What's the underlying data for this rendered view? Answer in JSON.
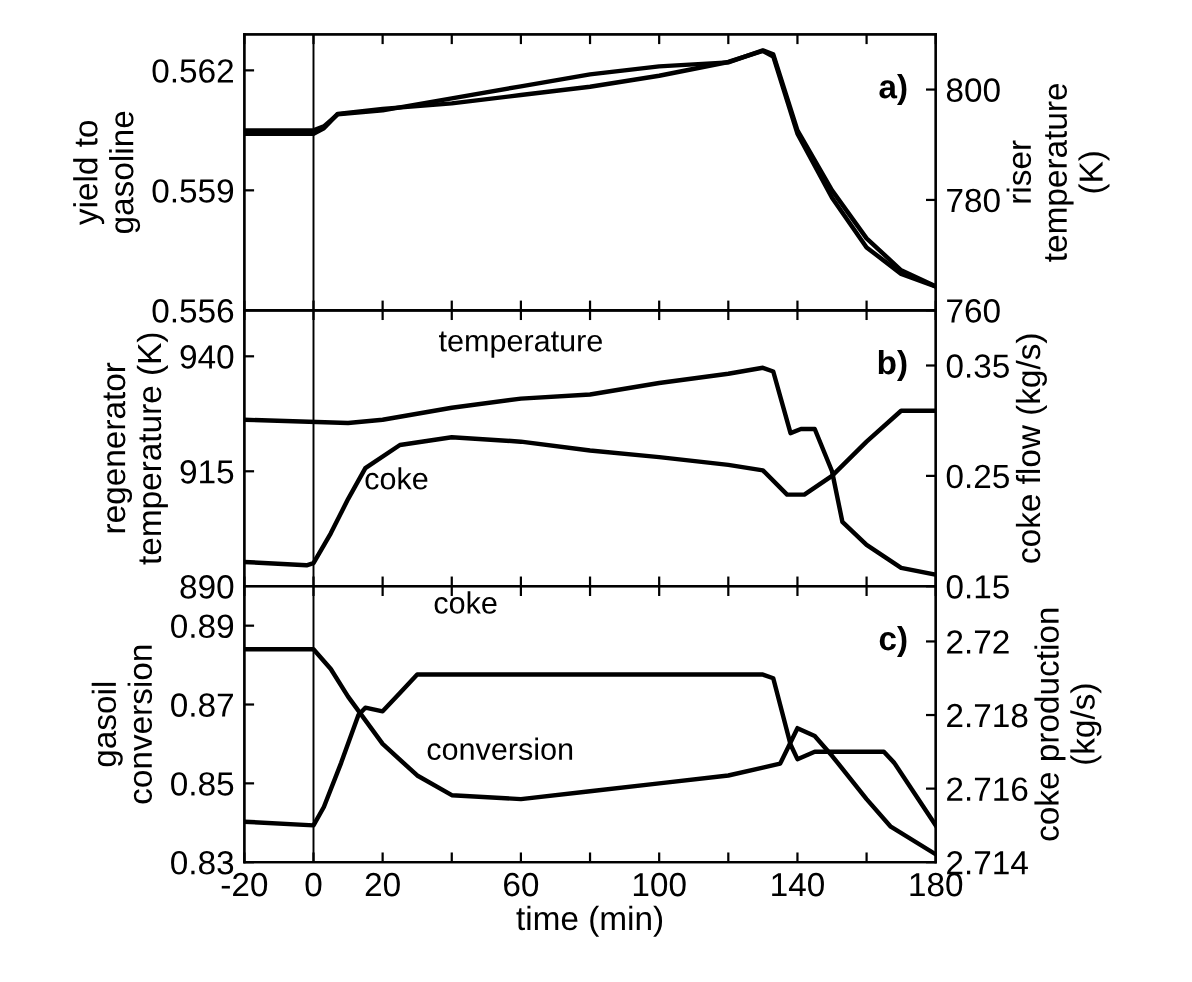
{
  "chart_data": [
    {
      "type": "line",
      "ylabel": "yield to\ngasoline",
      "y2label": "riser\ntemperature\n(K)",
      "xlim": [
        -20,
        180
      ],
      "xticks": [
        {
          "value": -20,
          "label": null
        },
        {
          "value": 0,
          "label": null
        },
        {
          "value": 20,
          "label": null
        },
        {
          "value": 40,
          "label": null
        },
        {
          "value": 60,
          "label": null
        },
        {
          "value": 80,
          "label": null
        },
        {
          "value": 100,
          "label": null
        },
        {
          "value": 120,
          "label": null
        },
        {
          "value": 140,
          "label": null
        },
        {
          "value": 160,
          "label": null
        },
        {
          "value": 180,
          "label": null
        }
      ],
      "ylim": [
        0.556,
        0.5629
      ],
      "yticks": [
        0.556,
        0.559,
        0.562
      ],
      "y2lim": [
        760,
        810
      ],
      "y2ticks": [
        760,
        780,
        800
      ],
      "tick_labels": "y",
      "grid": false,
      "legend": false,
      "annotations": [
        "a)"
      ],
      "ref_lines": [
        {
          "axis": "x",
          "value": 0,
          "label": null,
          "color": "#000000"
        }
      ],
      "series": [
        {
          "color": "#000000",
          "x": [
            -20,
            0,
            3,
            7,
            20,
            40,
            60,
            80,
            100,
            120,
            130,
            133,
            140,
            150,
            160,
            170,
            180
          ],
          "values": [
            0.5605,
            0.5605,
            0.5606,
            0.5609,
            0.561,
            0.5613,
            0.5616,
            0.5619,
            0.5621,
            0.5622,
            0.5625,
            0.5624,
            0.5605,
            0.559,
            0.5578,
            0.557,
            0.5566
          ]
        },
        {
          "color": "#000000",
          "axis": "y2",
          "x": [
            -20,
            0,
            3,
            7,
            20,
            40,
            60,
            80,
            100,
            120,
            130,
            133,
            140,
            150,
            160,
            170,
            180
          ],
          "values": [
            792,
            792,
            793,
            795.6,
            796.5,
            797.5,
            799,
            800.5,
            802.5,
            805,
            807,
            806,
            792,
            780.4,
            771.4,
            766.6,
            764.3
          ]
        }
      ]
    },
    {
      "type": "line",
      "ylabel": "regenerator\ntemperature (K)",
      "y2label": "coke flow (kg/s)",
      "xlim": [
        -20,
        180
      ],
      "xticks": [
        {
          "value": -20,
          "label": null
        },
        {
          "value": 0,
          "label": null
        },
        {
          "value": 20,
          "label": null
        },
        {
          "value": 40,
          "label": null
        },
        {
          "value": 60,
          "label": null
        },
        {
          "value": 80,
          "label": null
        },
        {
          "value": 100,
          "label": null
        },
        {
          "value": 120,
          "label": null
        },
        {
          "value": 140,
          "label": null
        },
        {
          "value": 160,
          "label": null
        },
        {
          "value": 180,
          "label": null
        }
      ],
      "ylim": [
        890,
        950
      ],
      "yticks": [
        890,
        915,
        940
      ],
      "y2lim": [
        0.15,
        0.4
      ],
      "y2ticks": [
        0.15,
        0.25,
        0.35
      ],
      "tick_labels": "y",
      "grid": false,
      "legend": false,
      "annotations": [
        "b)"
      ],
      "ref_lines": [
        {
          "axis": "x",
          "value": 0,
          "label": null,
          "color": "#000000"
        }
      ],
      "series": [
        {
          "name": "temperature",
          "color": "#000000",
          "x": [
            -20,
            10,
            20,
            40,
            60,
            80,
            100,
            120,
            130,
            133,
            138,
            141,
            145,
            150,
            153,
            160,
            170,
            180
          ],
          "values": [
            926.2,
            925.5,
            926.2,
            928.8,
            930.8,
            931.7,
            934.2,
            936.2,
            937.5,
            936.7,
            923.3,
            924.2,
            924.2,
            915,
            904,
            899,
            894,
            892.5
          ]
        },
        {
          "name": "coke",
          "color": "#000000",
          "axis": "y2",
          "x": [
            -20,
            -2,
            0,
            5,
            10,
            15,
            25,
            40,
            60,
            80,
            100,
            120,
            130,
            137,
            142,
            150,
            160,
            170,
            180
          ],
          "values": [
            0.172,
            0.169,
            0.171,
            0.198,
            0.229,
            0.257,
            0.278,
            0.285,
            0.281,
            0.273,
            0.267,
            0.26,
            0.255,
            0.233,
            0.233,
            0.25,
            0.281,
            0.309,
            0.309
          ]
        }
      ]
    },
    {
      "type": "line",
      "xlabel": "time (min)",
      "ylabel": "gasoil\nconversion",
      "y2label": "coke production\n(kg/s)",
      "xlim": [
        -20,
        180
      ],
      "xticks": [
        -20,
        0,
        20,
        {
          "value": 40,
          "label": null
        },
        60,
        {
          "value": 80,
          "label": null
        },
        100,
        {
          "value": 120,
          "label": null
        },
        140,
        {
          "value": 160,
          "label": null
        },
        180
      ],
      "ylim": [
        0.83,
        0.9
      ],
      "yticks": [
        0.83,
        0.85,
        0.87,
        0.89
      ],
      "y2lim": [
        2.714,
        2.7215
      ],
      "y2ticks": [
        2.714,
        2.716,
        2.718,
        2.72
      ],
      "grid": false,
      "legend": false,
      "annotations": [
        "c)"
      ],
      "ref_lines": [
        {
          "axis": "x",
          "value": 0,
          "label": null,
          "color": "#000000"
        }
      ],
      "series": [
        {
          "name": "conversion",
          "color": "#000000",
          "x": [
            -20,
            0,
            5,
            10,
            20,
            30,
            40,
            60,
            80,
            100,
            120,
            130,
            135,
            140,
            145,
            150,
            160,
            167,
            180
          ],
          "values": [
            0.884,
            0.884,
            0.879,
            0.872,
            0.86,
            0.852,
            0.847,
            0.846,
            0.848,
            0.85,
            0.852,
            0.854,
            0.855,
            0.864,
            0.862,
            0.857,
            0.846,
            0.839,
            0.832
          ]
        },
        {
          "name": "coke",
          "color": "#000000",
          "axis": "y2",
          "x": [
            -20,
            0,
            3,
            8,
            13,
            15,
            20,
            25,
            30,
            80,
            130,
            133,
            138,
            140,
            145,
            165,
            168,
            180
          ],
          "values": [
            2.7151,
            2.715,
            2.7155,
            2.7167,
            2.718,
            2.7182,
            2.7181,
            2.7186,
            2.7191,
            2.7191,
            2.7191,
            2.719,
            2.7172,
            2.7168,
            2.717,
            2.717,
            2.7167,
            2.715
          ]
        }
      ]
    }
  ]
}
